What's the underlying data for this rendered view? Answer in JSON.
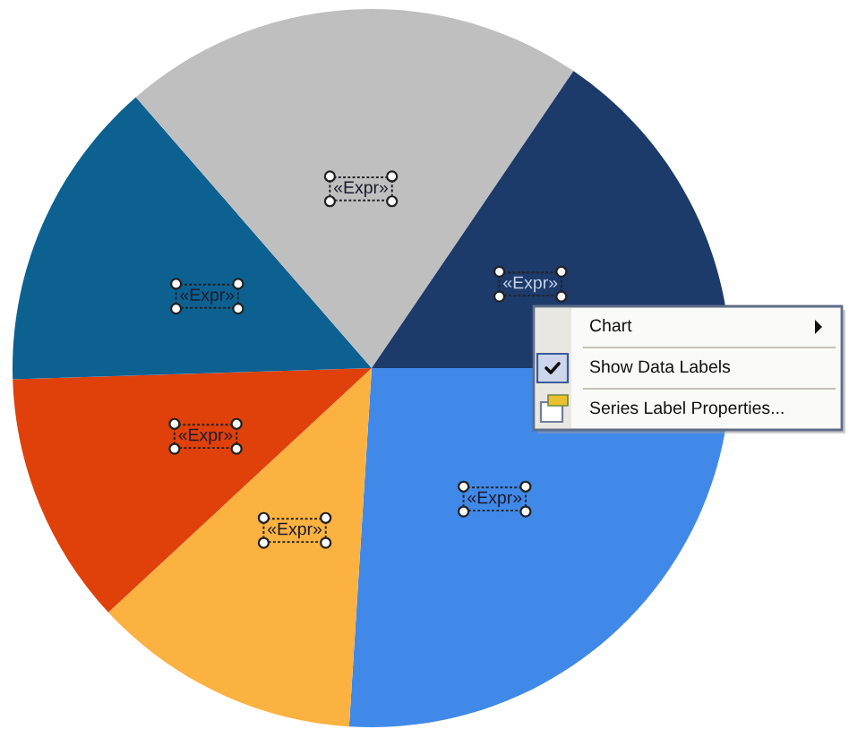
{
  "chart_data": {
    "type": "pie",
    "categories": [
      null,
      null,
      null,
      null,
      null,
      null
    ],
    "values": [
      26.0,
      12.1,
      11.4,
      14.1,
      20.9,
      15.5
    ],
    "colors": [
      "#4089e9",
      "#fcb240",
      "#e0400a",
      "#0d6191",
      "#bfbfbf",
      "#1c3a6a"
    ],
    "value_labels": [
      "«Expr»",
      "«Expr»",
      "«Expr»",
      "«Expr»",
      "«Expr»",
      "«Expr»"
    ],
    "annotations": [
      "Chart",
      "Show Data Labels",
      "Series Label Properties..."
    ]
  }
}
